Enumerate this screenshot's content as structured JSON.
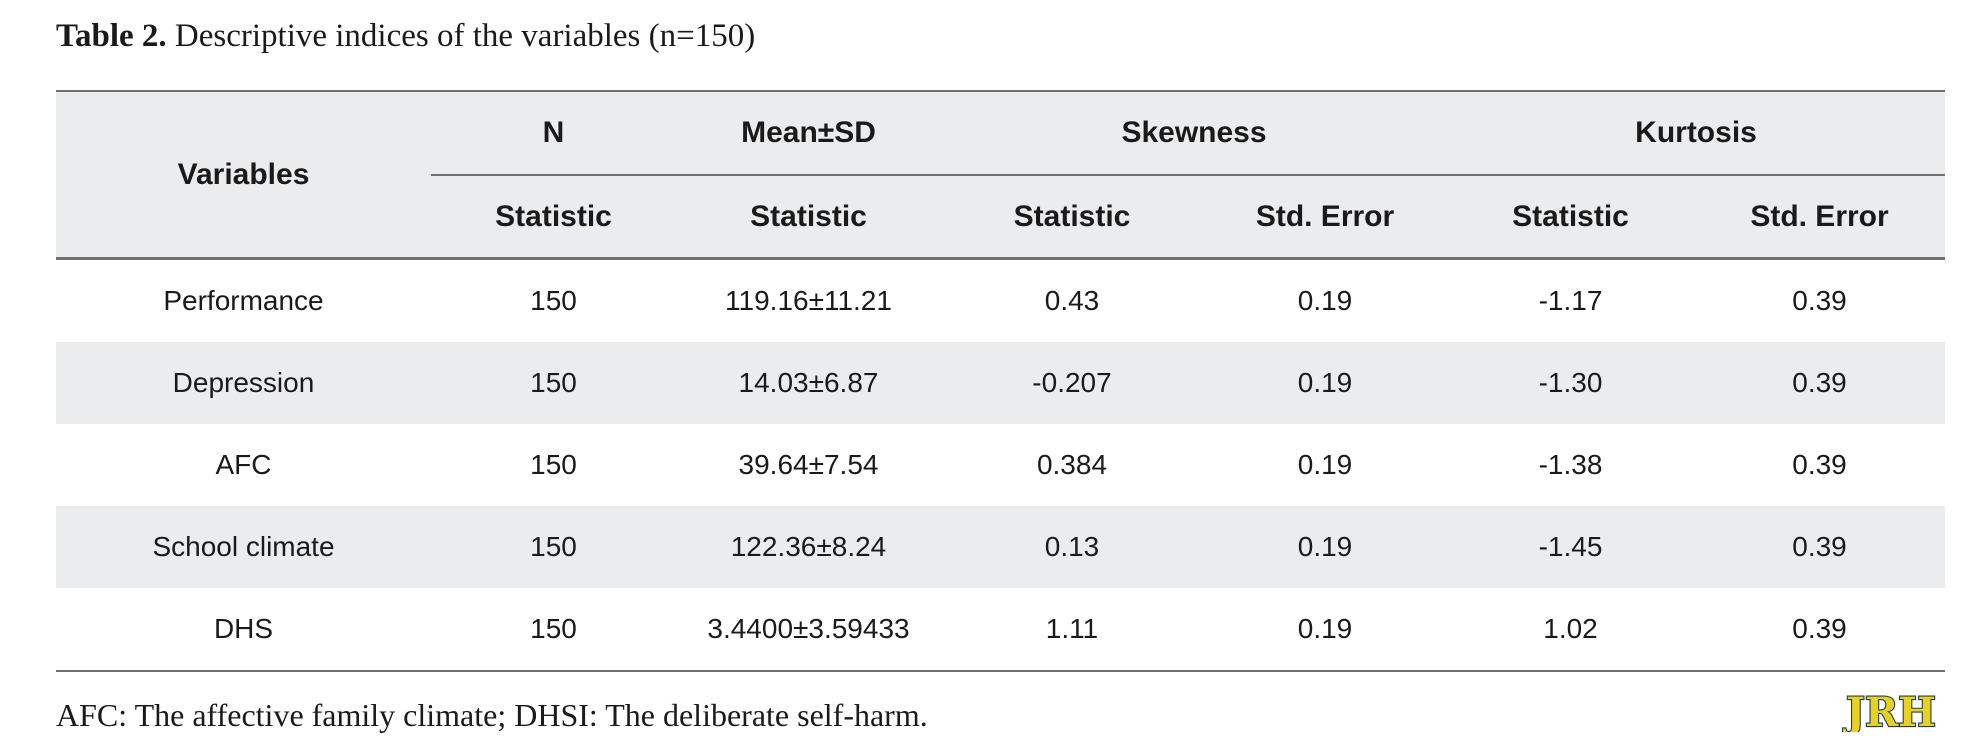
{
  "caption": {
    "label": "Table 2.",
    "text": "Descriptive indices of the variables (n=150)"
  },
  "table": {
    "header_groups": {
      "variables": "Variables",
      "n": "N",
      "mean_sd": "Mean±SD",
      "skewness": "Skewness",
      "kurtosis": "Kurtosis"
    },
    "subheaders": [
      "Statistic",
      "Statistic",
      "Statistic",
      "Std. Error",
      "Statistic",
      "Std. Error"
    ],
    "rows": [
      [
        "Performance",
        "150",
        "119.16±11.21",
        "0.43",
        "0.19",
        "-1.17",
        "0.39"
      ],
      [
        "Depression",
        "150",
        "14.03±6.87",
        "-0.207",
        "0.19",
        "-1.30",
        "0.39"
      ],
      [
        "AFC",
        "150",
        "39.64±7.54",
        "0.384",
        "0.19",
        "-1.38",
        "0.39"
      ],
      [
        "School climate",
        "150",
        "122.36±8.24",
        "0.13",
        "0.19",
        "-1.45",
        "0.39"
      ],
      [
        "DHS",
        "150",
        "3.4400±3.59433",
        "1.11",
        "0.19",
        "1.02",
        "0.39"
      ]
    ]
  },
  "footnote": "AFC: The affective family climate; DHSI: The deliberate self-harm.",
  "logo": {
    "text": "JRH",
    "icon": "journal-logo-icon",
    "fill_color": "#e8d21f",
    "stroke_color": "#1f3a5a"
  }
}
